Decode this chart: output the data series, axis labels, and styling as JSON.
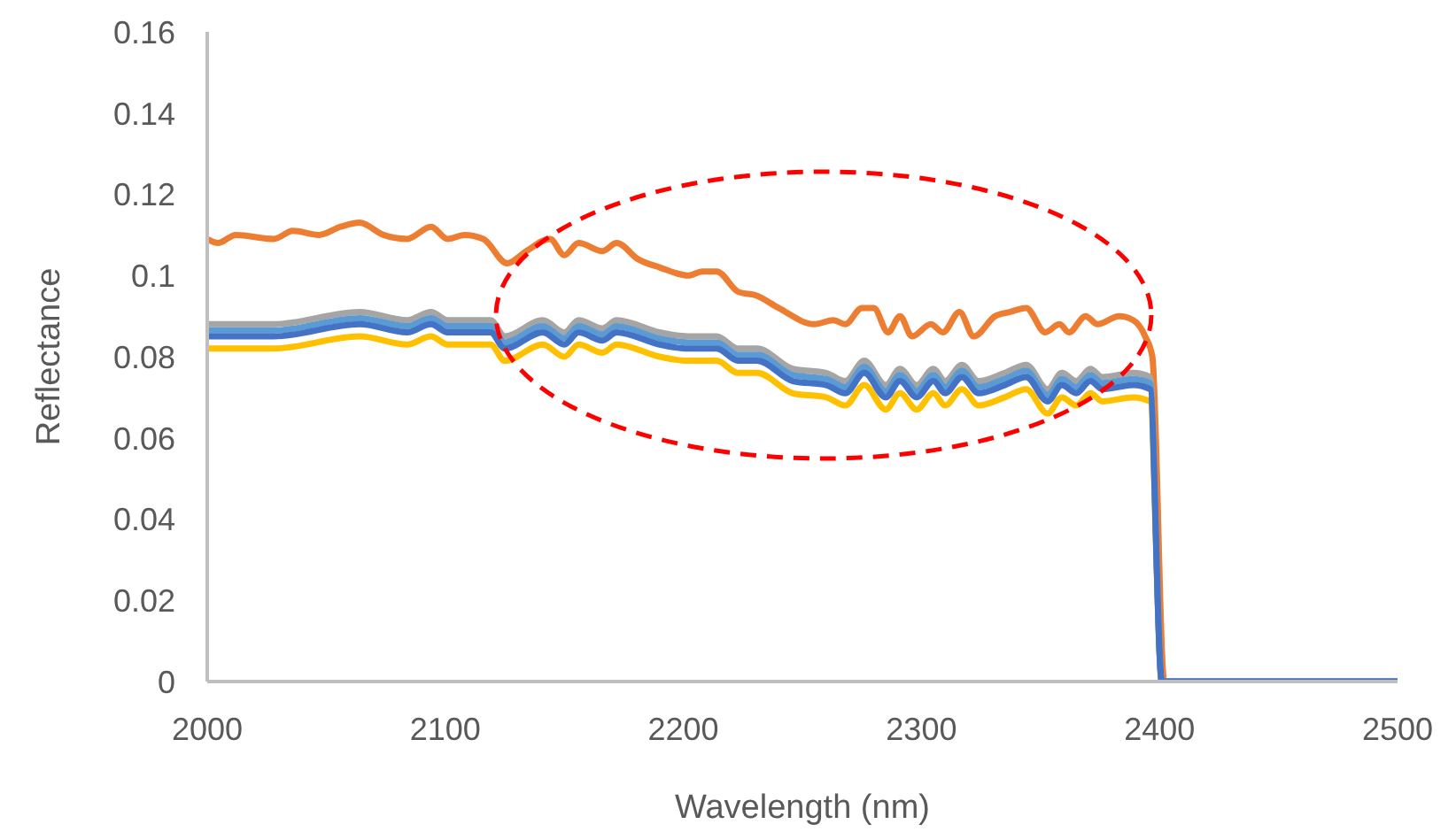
{
  "chart_data": {
    "type": "line",
    "xlabel": "Wavelength (nm)",
    "ylabel": "Reflectance",
    "x": [
      2000,
      2028,
      2064,
      2084,
      2094,
      2101,
      2119,
      2125,
      2141,
      2150,
      2156,
      2166,
      2172,
      2190,
      2202,
      2214,
      2223,
      2231,
      2246,
      2260,
      2268,
      2276,
      2285,
      2291,
      2298,
      2305,
      2310,
      2317,
      2324,
      2335,
      2344,
      2353,
      2359,
      2365,
      2371,
      2376,
      2389,
      2396,
      2401,
      2500
    ],
    "series": [
      {
        "color": "#ed7d31",
        "x": [
          2000,
          2004.5,
          2012,
          2028,
          2036,
          2047,
          2056,
          2064,
          2074,
          2084,
          2094,
          2101,
          2108,
          2116,
          2126,
          2134,
          2144,
          2150,
          2156,
          2166,
          2172,
          2181,
          2190,
          2202,
          2208,
          2214,
          2223,
          2231,
          2240,
          2255,
          2263,
          2268,
          2275,
          2280,
          2286,
          2291,
          2296,
          2304,
          2309,
          2316,
          2322,
          2331,
          2337,
          2344,
          2352,
          2358,
          2362,
          2369,
          2374,
          2383,
          2389,
          2394,
          2397,
          2402,
          2500
        ],
        "values": [
          0.109,
          0.108,
          0.11,
          0.109,
          0.111,
          0.11,
          0.112,
          0.113,
          0.11,
          0.109,
          0.112,
          0.109,
          0.11,
          0.109,
          0.103,
          0.106,
          0.109,
          0.105,
          0.108,
          0.106,
          0.108,
          0.104,
          0.102,
          0.1,
          0.101,
          0.101,
          0.096,
          0.095,
          0.092,
          0.088,
          0.089,
          0.088,
          0.092,
          0.092,
          0.086,
          0.09,
          0.085,
          0.088,
          0.086,
          0.091,
          0.085,
          0.09,
          0.091,
          0.092,
          0.086,
          0.088,
          0.086,
          0.09,
          0.088,
          0.09,
          0.089,
          0.085,
          0.08,
          0,
          0
        ]
      },
      {
        "color": "#ffc000",
        "values": [
          0.082,
          0.082,
          0.085,
          0.083,
          0.085,
          0.083,
          0.083,
          0.079,
          0.083,
          0.08,
          0.083,
          0.081,
          0.083,
          0.08,
          0.079,
          0.079,
          0.076,
          0.076,
          0.071,
          0.07,
          0.068,
          0.073,
          0.067,
          0.071,
          0.067,
          0.071,
          0.068,
          0.072,
          0.068,
          0.07,
          0.072,
          0.066,
          0.07,
          0.068,
          0.071,
          0.069,
          0.07,
          0.069,
          0,
          0
        ]
      },
      {
        "color": "#a5a5a5",
        "values": [
          0.088,
          0.088,
          0.091,
          0.089,
          0.091,
          0.089,
          0.089,
          0.085,
          0.089,
          0.086,
          0.089,
          0.087,
          0.089,
          0.086,
          0.085,
          0.085,
          0.082,
          0.082,
          0.077,
          0.076,
          0.074,
          0.079,
          0.073,
          0.077,
          0.073,
          0.077,
          0.074,
          0.078,
          0.074,
          0.076,
          0.078,
          0.072,
          0.076,
          0.074,
          0.077,
          0.075,
          0.076,
          0.075,
          0,
          0
        ]
      },
      {
        "color": "#5b9bd5",
        "values": [
          0.0865,
          0.0865,
          0.0895,
          0.0875,
          0.0895,
          0.0875,
          0.0875,
          0.0835,
          0.0875,
          0.0845,
          0.0875,
          0.0855,
          0.0875,
          0.0845,
          0.0835,
          0.0835,
          0.0805,
          0.0805,
          0.0755,
          0.0745,
          0.0725,
          0.0775,
          0.0715,
          0.0755,
          0.0715,
          0.0755,
          0.0725,
          0.0765,
          0.0725,
          0.0745,
          0.0765,
          0.0705,
          0.0745,
          0.0725,
          0.0755,
          0.0735,
          0.0745,
          0.0735,
          0,
          0
        ]
      },
      {
        "color": "#4472c4",
        "values": [
          0.085,
          0.085,
          0.088,
          0.086,
          0.088,
          0.086,
          0.086,
          0.082,
          0.086,
          0.083,
          0.086,
          0.084,
          0.086,
          0.083,
          0.082,
          0.082,
          0.079,
          0.079,
          0.074,
          0.073,
          0.071,
          0.076,
          0.07,
          0.074,
          0.07,
          0.074,
          0.071,
          0.075,
          0.071,
          0.073,
          0.075,
          0.069,
          0.073,
          0.071,
          0.074,
          0.072,
          0.073,
          0.072,
          0,
          0
        ]
      }
    ],
    "xlim": [
      2000,
      2500
    ],
    "xticks": [
      2000,
      2100,
      2200,
      2300,
      2400,
      2500
    ],
    "ylim": [
      0,
      0.16
    ],
    "yticks": [
      0,
      0.02,
      0.04,
      0.06,
      0.08,
      0.1,
      0.12,
      0.14,
      0.16
    ],
    "grid": false,
    "legend": false,
    "marker": "none",
    "line_style": "solid"
  }
}
